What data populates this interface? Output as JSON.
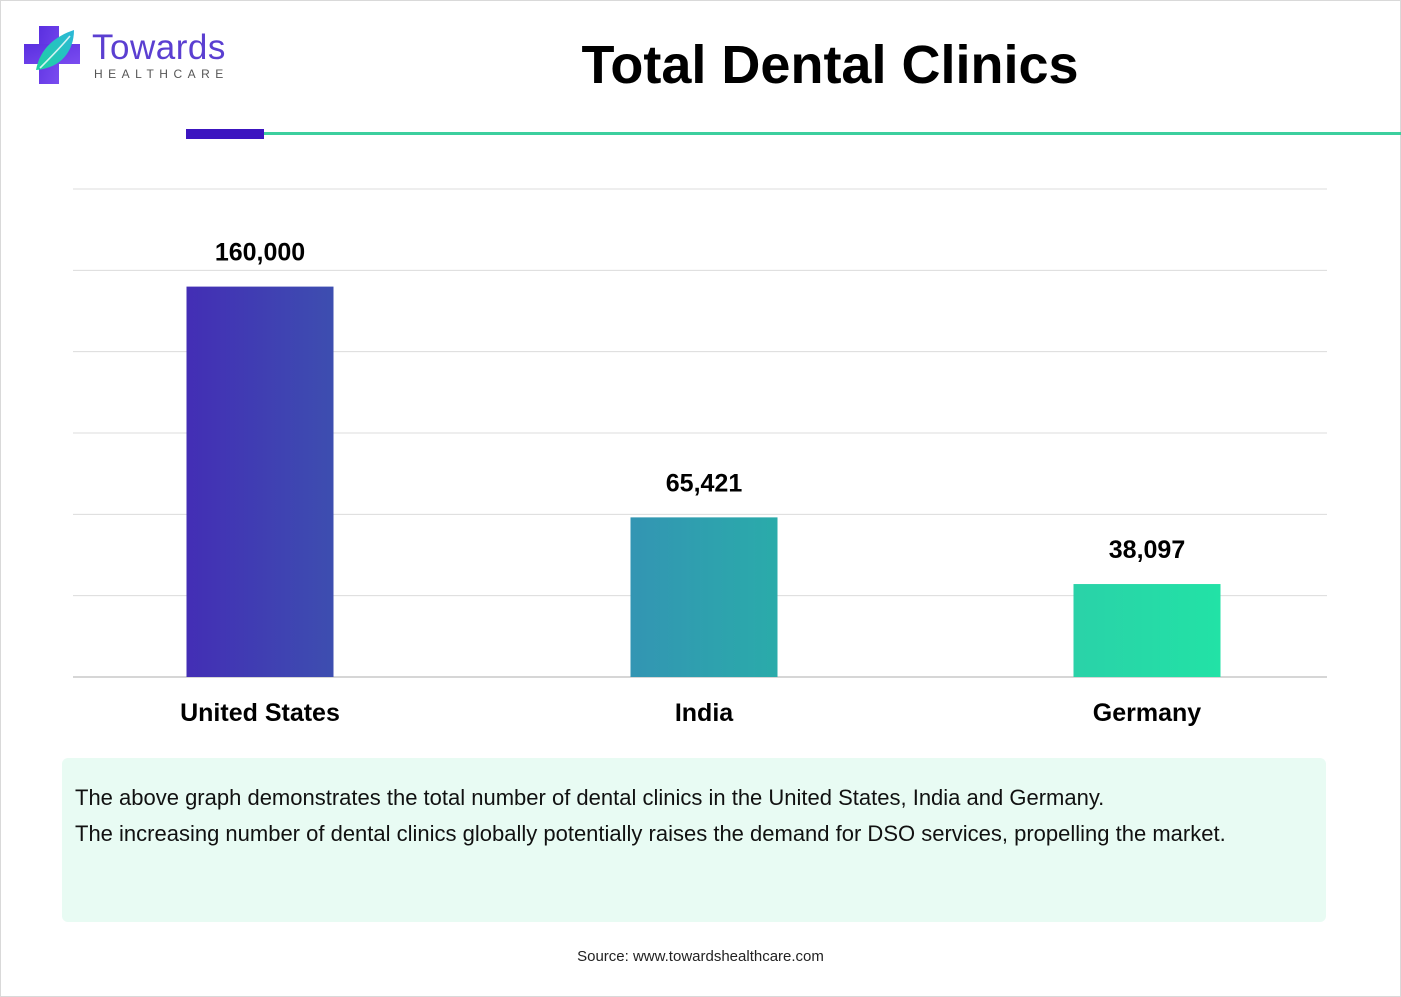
{
  "logo": {
    "name": "Towards",
    "sub": "HEALTHCARE"
  },
  "colors": {
    "brand_purple": "#5b3fd1",
    "rule_dark": "#3c15c0",
    "rule_teal": "#3ccf9e",
    "description_bg": "#e8fbf3"
  },
  "chart_data": {
    "type": "bar",
    "title": "Total Dental Clinics",
    "categories": [
      "United States",
      "India",
      "Germany"
    ],
    "values": [
      160000,
      65421,
      38097
    ],
    "value_labels": [
      "160,000",
      "65,421",
      "38,097"
    ],
    "bar_colors": [
      [
        "#432eb5",
        "#3d4eb0"
      ],
      [
        "#3395b3",
        "#2aabaa"
      ],
      [
        "#2ad2a8",
        "#22e2a6"
      ]
    ],
    "xlabel": "",
    "ylabel": "",
    "ylim": [
      0,
      200000
    ],
    "grid": true,
    "gridline_count": 7
  },
  "description": {
    "line1": "The above graph demonstrates the total number of dental clinics in the United States, India and Germany.",
    "line2": "The increasing number of dental clinics globally potentially raises the demand for DSO services, propelling the market."
  },
  "source": "Source: www.towardshealthcare.com"
}
